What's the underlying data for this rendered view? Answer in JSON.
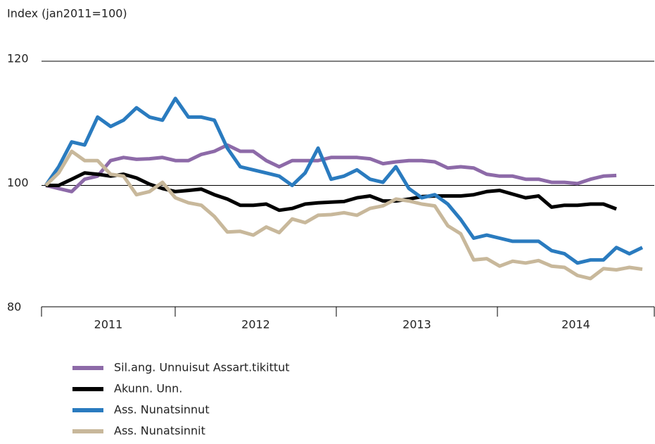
{
  "chart_data": {
    "type": "line",
    "y_label": "Index (jan2011=100)",
    "x_labels": [
      "2011",
      "2012",
      "2013",
      "2014"
    ],
    "ylim": [
      80,
      120
    ],
    "yticks": [
      80,
      100,
      120
    ],
    "series": [
      {
        "name": "Sil.ang. Unnuisut Assart.tikittut",
        "color": "#8d6aa8",
        "values": [
          100,
          99.5,
          99,
          101,
          101.5,
          104,
          104.5,
          104.2,
          104.3,
          104.5,
          104,
          104,
          105,
          105.5,
          106.5,
          105.5,
          105.5,
          104,
          103,
          104,
          104,
          104,
          104.5,
          104.5,
          104.5,
          104.3,
          103.5,
          103.8,
          104,
          104,
          103.8,
          102.8,
          103,
          102.8,
          101.8,
          101.5,
          101.5,
          101,
          101,
          100.5,
          100.5,
          100.3,
          101,
          101.5,
          101.6
        ]
      },
      {
        "name": "Akunn. Unn.",
        "color": "#000000",
        "values": [
          100,
          100,
          101,
          102,
          101.8,
          101.5,
          101.8,
          101.2,
          100.2,
          99.5,
          99,
          99.2,
          99.4,
          98.5,
          97.8,
          96.8,
          96.8,
          97,
          96,
          96.3,
          97,
          97.2,
          97.3,
          97.4,
          98,
          98.3,
          97.5,
          97.5,
          97.8,
          98.2,
          98.3,
          98.3,
          98.3,
          98.5,
          99,
          99.2,
          98.6,
          98,
          98.3,
          96.5,
          96.8,
          96.8,
          97,
          97,
          96.2
        ]
      },
      {
        "name": "Ass. Nunatsinnut",
        "color": "#2a7bbf",
        "values": [
          100,
          103,
          107,
          106.5,
          111,
          109.5,
          110.5,
          112.5,
          111,
          110.5,
          114,
          111,
          111,
          110.5,
          106,
          103,
          102.5,
          102,
          101.5,
          100,
          102,
          106,
          101,
          101.5,
          102.5,
          101,
          100.5,
          103,
          99.5,
          98,
          98.5,
          97,
          94.5,
          91.5,
          92,
          91.5,
          91,
          91,
          91,
          89.5,
          89,
          87.5,
          88,
          88,
          90,
          89,
          90
        ]
      },
      {
        "name": "Ass. Nunatsinnit",
        "color": "#c8b89b",
        "values": [
          100,
          102,
          105.5,
          104,
          104,
          101.8,
          101.5,
          98.5,
          99,
          100.5,
          98,
          97.2,
          96.8,
          95,
          92.5,
          92.6,
          92,
          93.3,
          92.4,
          94.6,
          94,
          95.2,
          95.3,
          95.6,
          95.2,
          96.3,
          96.7,
          97.8,
          97.5,
          97,
          96.7,
          93.5,
          92.2,
          88,
          88.2,
          87,
          87.8,
          87.5,
          87.9,
          87,
          86.8,
          85.5,
          85,
          86.6,
          86.4,
          86.8,
          86.5
        ]
      }
    ]
  }
}
